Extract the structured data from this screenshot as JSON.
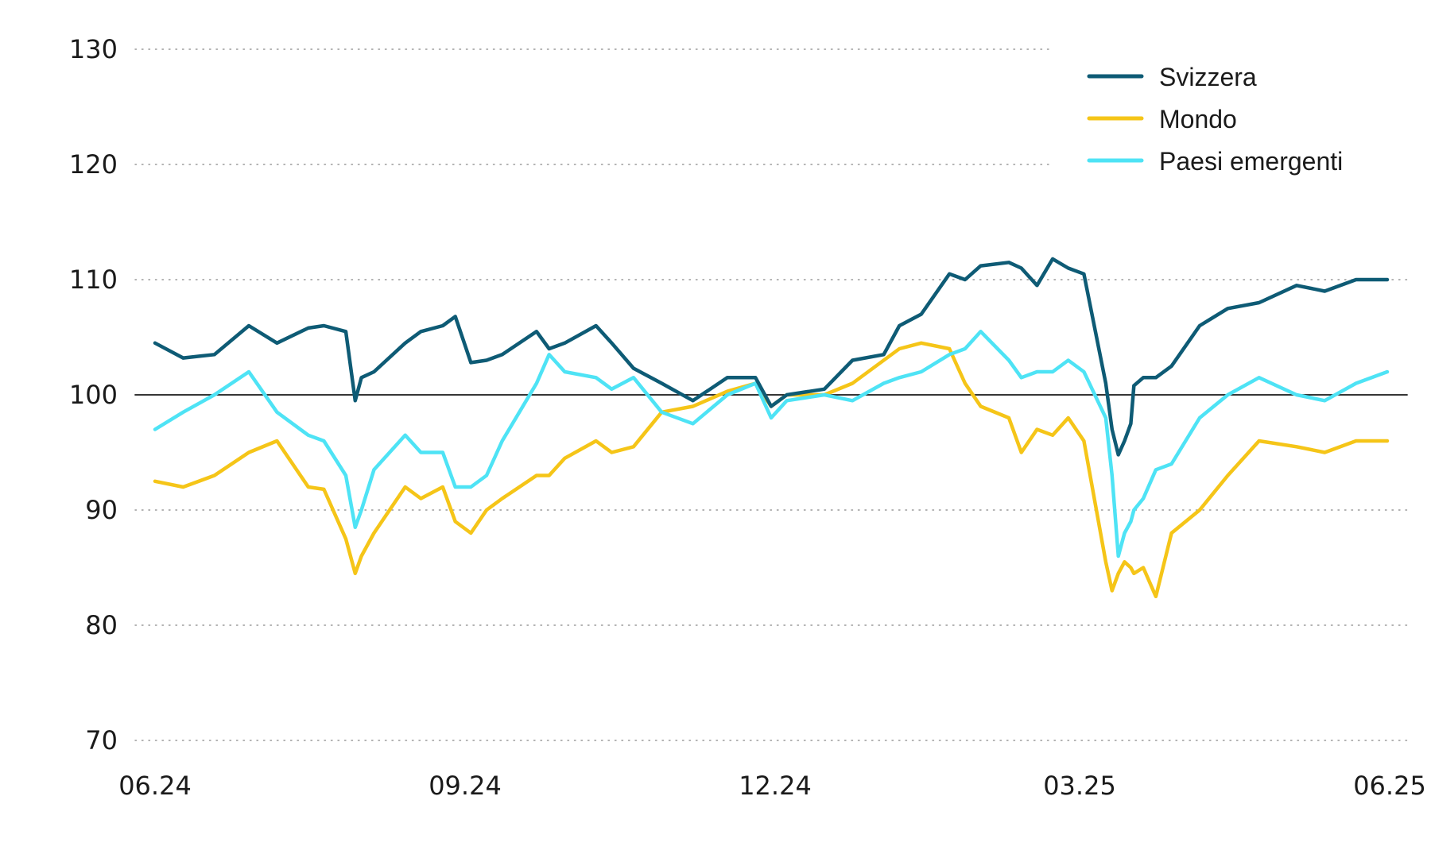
{
  "chart_data": {
    "type": "line",
    "title": "",
    "xlabel": "",
    "ylabel": "",
    "ylim": [
      70,
      130
    ],
    "y_ticks": [
      "130",
      "120",
      "110",
      "100",
      "90",
      "80",
      "70"
    ],
    "x_ticks": [
      "06.24",
      "09.24",
      "12.24",
      "03.25",
      "06.25"
    ],
    "baseline": 100,
    "grid": "dotted horizontal",
    "legend_position": "top-right",
    "x_start": "2024-06-01",
    "x_end": "2025-06-30",
    "series": [
      {
        "name": "Svizzera",
        "color": "#0e5b75",
        "dates": [
          "2024-06-01",
          "2024-06-10",
          "2024-06-20",
          "2024-07-01",
          "2024-07-10",
          "2024-07-20",
          "2024-07-25",
          "2024-08-01",
          "2024-08-04",
          "2024-08-06",
          "2024-08-10",
          "2024-08-20",
          "2024-08-25",
          "2024-09-01",
          "2024-09-05",
          "2024-09-10",
          "2024-09-15",
          "2024-09-20",
          "2024-10-01",
          "2024-10-05",
          "2024-10-10",
          "2024-10-20",
          "2024-10-25",
          "2024-11-01",
          "2024-11-10",
          "2024-11-20",
          "2024-12-01",
          "2024-12-10",
          "2024-12-15",
          "2024-12-20",
          "2025-01-01",
          "2025-01-10",
          "2025-01-20",
          "2025-01-25",
          "2025-02-01",
          "2025-02-10",
          "2025-02-15",
          "2025-02-20",
          "2025-03-01",
          "2025-03-05",
          "2025-03-10",
          "2025-03-15",
          "2025-03-20",
          "2025-03-25",
          "2025-04-01",
          "2025-04-03",
          "2025-04-05",
          "2025-04-07",
          "2025-04-09",
          "2025-04-10",
          "2025-04-13",
          "2025-04-17",
          "2025-04-22",
          "2025-05-01",
          "2025-05-10",
          "2025-05-20",
          "2025-06-01",
          "2025-06-10",
          "2025-06-20",
          "2025-06-30"
        ],
        "values": [
          104.5,
          103.2,
          103.5,
          106,
          104.5,
          105.8,
          106,
          105.5,
          99.5,
          101.5,
          102,
          104.5,
          105.5,
          106,
          106.8,
          102.8,
          103,
          103.5,
          105.5,
          104,
          104.5,
          106,
          104.5,
          102.3,
          101,
          99.5,
          101.5,
          101.5,
          99,
          100,
          100.5,
          103,
          103.5,
          106,
          107,
          110.5,
          110,
          111.2,
          111.5,
          111,
          109.5,
          111.8,
          111,
          110.5,
          101,
          97,
          94.8,
          96,
          97.5,
          100.8,
          101.5,
          101.5,
          102.5,
          106,
          107.5,
          108,
          109.5,
          109,
          110,
          110
        ]
      },
      {
        "name": "Mondo",
        "color": "#f5c518",
        "dates": [
          "2024-06-01",
          "2024-06-10",
          "2024-06-20",
          "2024-07-01",
          "2024-07-10",
          "2024-07-20",
          "2024-07-25",
          "2024-08-01",
          "2024-08-04",
          "2024-08-06",
          "2024-08-10",
          "2024-08-20",
          "2024-08-25",
          "2024-09-01",
          "2024-09-05",
          "2024-09-10",
          "2024-09-15",
          "2024-09-20",
          "2024-10-01",
          "2024-10-05",
          "2024-10-10",
          "2024-10-20",
          "2024-10-25",
          "2024-11-01",
          "2024-11-10",
          "2024-11-20",
          "2024-12-01",
          "2024-12-10",
          "2024-12-15",
          "2024-12-20",
          "2025-01-01",
          "2025-01-10",
          "2025-01-20",
          "2025-01-25",
          "2025-02-01",
          "2025-02-10",
          "2025-02-15",
          "2025-02-20",
          "2025-03-01",
          "2025-03-05",
          "2025-03-10",
          "2025-03-15",
          "2025-03-20",
          "2025-03-25",
          "2025-04-01",
          "2025-04-03",
          "2025-04-05",
          "2025-04-07",
          "2025-04-09",
          "2025-04-10",
          "2025-04-13",
          "2025-04-17",
          "2025-04-22",
          "2025-05-01",
          "2025-05-10",
          "2025-05-20",
          "2025-06-01",
          "2025-06-10",
          "2025-06-20",
          "2025-06-30"
        ],
        "values": [
          92.5,
          92,
          93,
          95,
          96,
          92,
          91.8,
          87.5,
          84.5,
          86,
          88,
          92,
          91,
          92,
          89,
          88,
          90,
          91,
          93,
          93,
          94.5,
          96,
          95,
          95.5,
          98.5,
          99,
          100.3,
          101,
          99,
          100,
          100,
          101,
          103,
          104,
          104.5,
          104,
          101,
          99,
          98,
          95,
          97,
          96.5,
          98,
          96,
          85.5,
          83,
          84.5,
          85.5,
          85,
          84.5,
          85,
          82.5,
          88,
          90,
          93,
          96,
          95.5,
          95,
          96,
          96
        ]
      },
      {
        "name": "Paesi emergenti",
        "color": "#4ee3f5",
        "dates": [
          "2024-06-01",
          "2024-06-10",
          "2024-06-20",
          "2024-07-01",
          "2024-07-10",
          "2024-07-20",
          "2024-07-25",
          "2024-08-01",
          "2024-08-04",
          "2024-08-06",
          "2024-08-10",
          "2024-08-20",
          "2024-08-25",
          "2024-09-01",
          "2024-09-05",
          "2024-09-10",
          "2024-09-15",
          "2024-09-20",
          "2024-10-01",
          "2024-10-05",
          "2024-10-10",
          "2024-10-20",
          "2024-10-25",
          "2024-11-01",
          "2024-11-10",
          "2024-11-20",
          "2024-12-01",
          "2024-12-10",
          "2024-12-15",
          "2024-12-20",
          "2025-01-01",
          "2025-01-10",
          "2025-01-20",
          "2025-01-25",
          "2025-02-01",
          "2025-02-10",
          "2025-02-15",
          "2025-02-20",
          "2025-03-01",
          "2025-03-05",
          "2025-03-10",
          "2025-03-15",
          "2025-03-20",
          "2025-03-25",
          "2025-04-01",
          "2025-04-03",
          "2025-04-05",
          "2025-04-07",
          "2025-04-09",
          "2025-04-10",
          "2025-04-13",
          "2025-04-17",
          "2025-04-22",
          "2025-05-01",
          "2025-05-10",
          "2025-05-20",
          "2025-06-01",
          "2025-06-10",
          "2025-06-20",
          "2025-06-30"
        ],
        "values": [
          97,
          98.5,
          100,
          102,
          98.5,
          96.5,
          96,
          93,
          88.5,
          90,
          93.5,
          96.5,
          95,
          95,
          92,
          92,
          93,
          96,
          101,
          103.5,
          102,
          101.5,
          100.5,
          101.5,
          98.5,
          97.5,
          100,
          101,
          98,
          99.5,
          100,
          99.5,
          101,
          101.5,
          102,
          103.5,
          104,
          105.5,
          103,
          101.5,
          102,
          102,
          103,
          102,
          98,
          93,
          86,
          88,
          89,
          90,
          91,
          93.5,
          94,
          98,
          100,
          101.5,
          100,
          99.5,
          101,
          102
        ]
      }
    ]
  }
}
